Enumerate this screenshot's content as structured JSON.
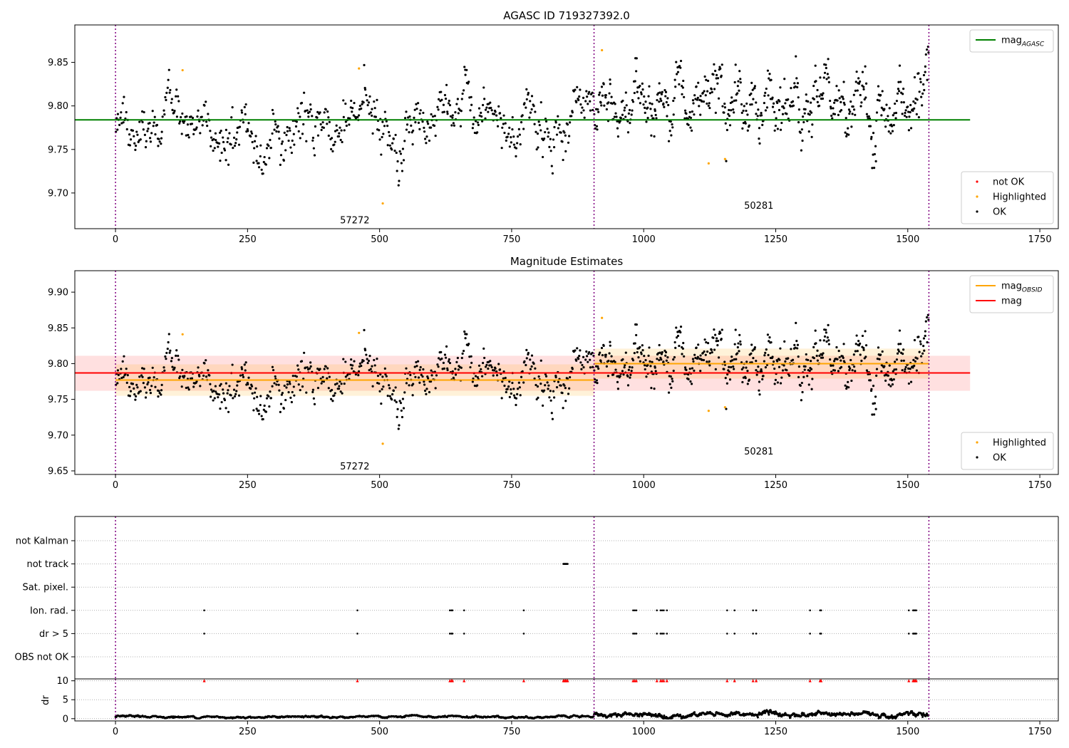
{
  "figure": {
    "background": "#ffffff"
  },
  "chart_data": [
    {
      "type": "scatter",
      "title": "AGASC ID 719327392.0",
      "xlim": [
        -77,
        1785
      ],
      "ylim": [
        9.659,
        9.893
      ],
      "xticks": [
        0,
        250,
        500,
        750,
        1000,
        1250,
        1500,
        1750
      ],
      "yticks": [
        9.7,
        9.75,
        9.8,
        9.85
      ],
      "ytick_labels": [
        "9.70",
        "9.75",
        "9.80",
        "9.85"
      ],
      "obsid_boundaries": [
        0,
        906,
        1540
      ],
      "obsid_labels": [
        {
          "text": "57272",
          "x": 453,
          "y": 9.665
        },
        {
          "text": "50281",
          "x": 1218,
          "y": 9.682
        }
      ],
      "hlines": [
        {
          "name": "mag_AGASC",
          "y": 9.784,
          "x_start": -77,
          "x_end": 1618,
          "color": "#008000"
        }
      ],
      "series": [
        {
          "name": "not OK",
          "color": "#ff0000",
          "points": []
        },
        {
          "name": "Highlighted",
          "color": "#ffa500",
          "points": [
            [
              127,
              9.841
            ],
            [
              461,
              9.843
            ],
            [
              506,
              9.688
            ],
            [
              921,
              9.864
            ],
            [
              1123,
              9.734
            ],
            [
              1154,
              9.739
            ]
          ]
        },
        {
          "name": "OK",
          "color": "#000000",
          "generated": true
        }
      ],
      "ok_series_segments": [
        {
          "x_start": 0,
          "x_end": 906,
          "n": 640,
          "base": 9.779,
          "sd": 0.018
        },
        {
          "x_start": 906,
          "x_end": 1540,
          "n": 560,
          "base": 9.801,
          "sd": 0.02
        }
      ],
      "legends": [
        {
          "position": "upper right",
          "entries": [
            {
              "label": "mag",
              "sub": "AGASC",
              "kind": "line",
              "color": "#008000"
            }
          ]
        },
        {
          "position": "lower right",
          "entries": [
            {
              "label": "not OK",
              "kind": "dot",
              "color": "#ff0000"
            },
            {
              "label": "Highlighted",
              "kind": "dot",
              "color": "#ffa500"
            },
            {
              "label": "OK",
              "kind": "dot",
              "color": "#000000"
            }
          ]
        }
      ]
    },
    {
      "type": "scatter",
      "title": "Magnitude Estimates",
      "xlim": [
        -77,
        1785
      ],
      "ylim": [
        9.645,
        9.93
      ],
      "xticks": [
        0,
        250,
        500,
        750,
        1000,
        1250,
        1500,
        1750
      ],
      "yticks": [
        9.65,
        9.7,
        9.75,
        9.8,
        9.85,
        9.9
      ],
      "ytick_labels": [
        "9.65",
        "9.70",
        "9.75",
        "9.80",
        "9.85",
        "9.90"
      ],
      "obsid_boundaries": [
        0,
        906,
        1540
      ],
      "obsid_labels": [
        {
          "text": "57272",
          "x": 453,
          "y": 9.652
        },
        {
          "text": "50281",
          "x": 1218,
          "y": 9.673
        }
      ],
      "bands": [
        {
          "x_start": -77,
          "x_end": 1618,
          "y_low": 9.762,
          "y_high": 9.811,
          "color": "#ff0000",
          "opacity": 0.12
        },
        {
          "x_start": 0,
          "x_end": 906,
          "y_low": 9.755,
          "y_high": 9.799,
          "color": "#ffa500",
          "opacity": 0.15
        },
        {
          "x_start": 906,
          "x_end": 1540,
          "y_low": 9.779,
          "y_high": 9.821,
          "color": "#ffa500",
          "opacity": 0.15
        }
      ],
      "hlines": [
        {
          "name": "mag",
          "y": 9.787,
          "x_start": -77,
          "x_end": 1618,
          "color": "#ff0000"
        },
        {
          "name": "mag_OBSID 57272",
          "y": 9.777,
          "x_start": 0,
          "x_end": 906,
          "color": "#ffa500"
        },
        {
          "name": "mag_OBSID 50281",
          "y": 9.8,
          "x_start": 906,
          "x_end": 1540,
          "color": "#ffa500"
        }
      ],
      "series": [
        {
          "name": "Highlighted",
          "color": "#ffa500",
          "points": [
            [
              127,
              9.841
            ],
            [
              461,
              9.843
            ],
            [
              506,
              9.688
            ],
            [
              921,
              9.864
            ],
            [
              1123,
              9.734
            ],
            [
              1154,
              9.739
            ]
          ]
        },
        {
          "name": "OK",
          "color": "#000000",
          "generated": true
        }
      ],
      "ok_series_segments": [
        {
          "x_start": 0,
          "x_end": 906,
          "n": 640,
          "base": 9.779,
          "sd": 0.018
        },
        {
          "x_start": 906,
          "x_end": 1540,
          "n": 560,
          "base": 9.801,
          "sd": 0.02
        }
      ],
      "legends": [
        {
          "position": "upper right",
          "entries": [
            {
              "label": "mag",
              "sub": "OBSID",
              "kind": "line",
              "color": "#ffa500"
            },
            {
              "label": "mag",
              "kind": "line",
              "color": "#ff0000"
            }
          ]
        },
        {
          "position": "lower right",
          "entries": [
            {
              "label": "Highlighted",
              "kind": "dot",
              "color": "#ffa500"
            },
            {
              "label": "OK",
              "kind": "dot",
              "color": "#000000"
            }
          ]
        }
      ]
    },
    {
      "type": "scatter",
      "title": "",
      "xlim": [
        -77,
        1785
      ],
      "categories": [
        "not Kalman",
        "not track",
        "Sat. pixel.",
        "Ion. rad.",
        "dr > 5",
        "OBS not OK"
      ],
      "obsid_boundaries": [
        0,
        906,
        1540
      ],
      "flag_points": {
        "not Kalman": [],
        "not track": [
          848,
          849,
          850,
          851,
          852,
          853,
          854,
          855,
          856
        ],
        "Sat. pixel.": [],
        "Ion. rad.": [
          168,
          458,
          633,
          636,
          638,
          660,
          773,
          980,
          983,
          986,
          1025,
          1032,
          1035,
          1038,
          1044,
          1158,
          1172,
          1207,
          1213,
          1315,
          1334,
          1336,
          1502,
          1510,
          1512,
          1514,
          1516
        ],
        "dr > 5": [
          168,
          458,
          633,
          636,
          638,
          660,
          773,
          980,
          983,
          986,
          1025,
          1032,
          1035,
          1038,
          1044,
          1158,
          1172,
          1207,
          1213,
          1315,
          1334,
          1336,
          1502,
          1510,
          1512,
          1514,
          1516
        ],
        "OBS not OK": []
      }
    },
    {
      "type": "scatter",
      "title": "",
      "ylabel": "dr",
      "xlim": [
        -77,
        1785
      ],
      "ylim": [
        -0.6,
        10.5
      ],
      "xticks": [
        0,
        250,
        500,
        750,
        1000,
        1250,
        1500,
        1750
      ],
      "yticks": [
        0,
        5,
        10
      ],
      "ytick_labels": [
        "0",
        "5",
        "10"
      ],
      "obsid_boundaries": [
        0,
        906,
        1540
      ],
      "dr_segments": [
        {
          "x_start": 0,
          "x_end": 906,
          "mean": 0.45,
          "sd": 0.18
        },
        {
          "x_start": 906,
          "x_end": 1540,
          "mean": 1.1,
          "sd": 0.45
        }
      ],
      "clipped_markers": {
        "y": 10,
        "color": "#ff0000",
        "x": [
          168,
          458,
          633,
          636,
          638,
          660,
          773,
          848,
          850,
          852,
          854,
          856,
          980,
          983,
          986,
          1025,
          1032,
          1035,
          1038,
          1044,
          1158,
          1172,
          1207,
          1213,
          1315,
          1334,
          1336,
          1502,
          1510,
          1512,
          1514,
          1516
        ]
      }
    }
  ]
}
